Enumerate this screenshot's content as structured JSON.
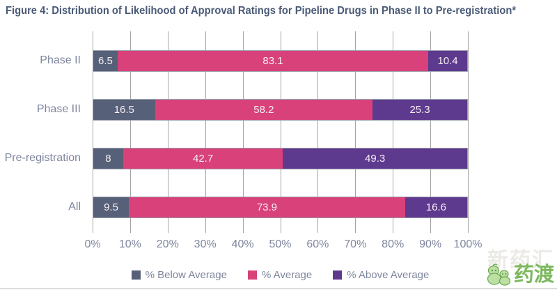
{
  "title": "Figure 4: Distribution of Likelihood of Approval Ratings for Pipeline Drugs in Phase II to Pre-registration*",
  "chart_data": {
    "type": "bar",
    "orientation": "horizontal-stacked",
    "title": "Figure 4: Distribution of Likelihood of Approval Ratings for Pipeline Drugs in Phase II to Pre-registration*",
    "categories": [
      "Phase II",
      "Phase III",
      "Pre-registration",
      "All"
    ],
    "series": [
      {
        "name": "% Below Average",
        "color": "#566078",
        "values": [
          6.5,
          16.5,
          8,
          9.5
        ]
      },
      {
        "name": "% Average",
        "color": "#d84179",
        "values": [
          83.1,
          58.2,
          42.7,
          73.9
        ]
      },
      {
        "name": "% Above Average",
        "color": "#5e3a8e",
        "values": [
          10.4,
          25.3,
          49.3,
          16.6
        ]
      }
    ],
    "value_labels": [
      [
        "6.5",
        "83.1",
        "10.4"
      ],
      [
        "16.5",
        "58.2",
        "25.3"
      ],
      [
        "8",
        "42.7",
        "49.3"
      ],
      [
        "9.5",
        "73.9",
        "16.6"
      ]
    ],
    "x_ticks": [
      "0%",
      "10%",
      "20%",
      "30%",
      "40%",
      "50%",
      "60%",
      "70%",
      "80%",
      "90%",
      "100%"
    ],
    "xlim": [
      0,
      100
    ],
    "grid": true,
    "legend_position": "bottom"
  },
  "watermark": {
    "logo_text": "药渡",
    "background_text": "新药汇",
    "logo_color": "#7cb85e"
  },
  "colors": {
    "title": "#4a5a76",
    "axis_text": "#7e869d",
    "gridline": "#a3a3a3",
    "bar_border": "#9aa0ac",
    "bar_value_text": "#f6eef2"
  }
}
